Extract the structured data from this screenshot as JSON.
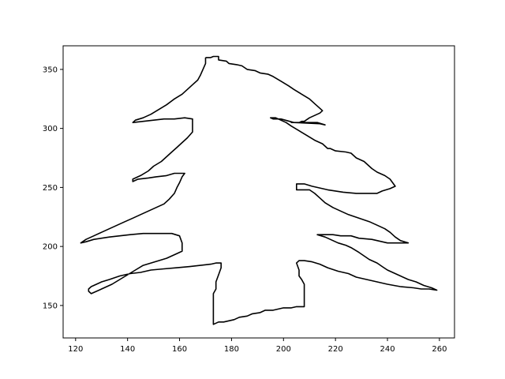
{
  "chart_data": {
    "type": "line",
    "title": "",
    "xlabel": "",
    "ylabel": "",
    "xlim": [
      115.2,
      265.8
    ],
    "ylim": [
      122.5,
      370.0
    ],
    "x_ticks": [
      120,
      140,
      160,
      180,
      200,
      220,
      240,
      260
    ],
    "y_ticks": [
      150,
      200,
      250,
      300,
      350
    ],
    "x_tick_labels": [
      "120",
      "140",
      "160",
      "180",
      "200",
      "220",
      "240",
      "260"
    ],
    "y_tick_labels": [
      "150",
      "200",
      "250",
      "300",
      "350"
    ],
    "grid": false,
    "legend": false,
    "line_color": "#000000",
    "series": [
      {
        "points": [
          [
            170,
            360
          ],
          [
            172,
            360
          ],
          [
            173,
            361
          ],
          [
            175,
            361
          ],
          [
            175,
            358
          ],
          [
            178,
            357
          ],
          [
            179,
            355
          ],
          [
            182,
            354
          ],
          [
            184,
            353
          ],
          [
            186,
            350
          ],
          [
            189,
            349
          ],
          [
            191,
            347
          ],
          [
            194,
            346
          ],
          [
            196,
            344
          ],
          [
            199,
            340
          ],
          [
            202,
            336
          ],
          [
            204,
            333
          ],
          [
            207,
            329
          ],
          [
            210,
            325
          ],
          [
            212,
            321
          ],
          [
            214,
            317
          ],
          [
            215,
            315
          ],
          [
            214,
            313
          ],
          [
            212,
            311
          ],
          [
            210,
            309
          ],
          [
            208,
            306
          ],
          [
            207,
            306
          ],
          [
            206,
            305
          ],
          [
            204,
            305
          ],
          [
            203,
            305
          ],
          [
            213,
            305
          ],
          [
            216,
            303
          ],
          [
            214,
            304
          ],
          [
            204,
            305
          ],
          [
            199,
            308
          ],
          [
            196,
            308
          ],
          [
            195,
            309
          ],
          [
            197,
            309
          ],
          [
            199,
            307
          ],
          [
            201,
            305
          ],
          [
            203,
            302
          ],
          [
            206,
            298
          ],
          [
            209,
            294
          ],
          [
            212,
            290
          ],
          [
            215,
            287
          ],
          [
            217,
            283
          ],
          [
            218,
            283
          ],
          [
            220,
            281
          ],
          [
            224,
            280
          ],
          [
            226,
            279
          ],
          [
            227,
            277
          ],
          [
            228,
            275
          ],
          [
            231,
            272
          ],
          [
            233,
            268
          ],
          [
            234,
            266
          ],
          [
            236,
            263
          ],
          [
            239,
            260
          ],
          [
            241,
            257
          ],
          [
            242,
            254
          ],
          [
            243,
            251
          ],
          [
            241,
            249
          ],
          [
            238,
            247
          ],
          [
            236,
            245
          ],
          [
            233,
            245
          ],
          [
            228,
            245
          ],
          [
            223,
            246
          ],
          [
            217,
            248
          ],
          [
            211,
            251
          ],
          [
            208,
            253
          ],
          [
            205,
            253
          ],
          [
            205,
            248
          ],
          [
            207,
            248
          ],
          [
            210,
            248
          ],
          [
            212,
            245
          ],
          [
            214,
            241
          ],
          [
            216,
            237
          ],
          [
            219,
            233
          ],
          [
            222,
            230
          ],
          [
            225,
            227
          ],
          [
            229,
            224
          ],
          [
            233,
            221
          ],
          [
            236,
            218
          ],
          [
            239,
            215
          ],
          [
            241,
            212
          ],
          [
            243,
            208
          ],
          [
            245,
            205
          ],
          [
            248,
            203
          ],
          [
            243,
            203
          ],
          [
            240,
            203
          ],
          [
            234,
            206
          ],
          [
            229,
            207
          ],
          [
            226,
            209
          ],
          [
            222,
            209
          ],
          [
            219,
            210
          ],
          [
            215,
            210
          ],
          [
            213,
            210
          ],
          [
            216,
            208
          ],
          [
            219,
            205
          ],
          [
            221,
            203
          ],
          [
            224,
            201
          ],
          [
            226,
            199
          ],
          [
            229,
            195
          ],
          [
            231,
            192
          ],
          [
            233,
            189
          ],
          [
            236,
            186
          ],
          [
            238,
            183
          ],
          [
            240,
            180
          ],
          [
            242,
            178
          ],
          [
            245,
            175
          ],
          [
            248,
            172
          ],
          [
            251,
            170
          ],
          [
            254,
            167
          ],
          [
            257,
            165
          ],
          [
            259,
            163
          ],
          [
            256,
            164
          ],
          [
            253,
            164
          ],
          [
            250,
            165
          ],
          [
            245,
            166
          ],
          [
            240,
            168
          ],
          [
            236,
            170
          ],
          [
            232,
            172
          ],
          [
            228,
            174
          ],
          [
            225,
            177
          ],
          [
            221,
            179
          ],
          [
            217,
            182
          ],
          [
            214,
            185
          ],
          [
            211,
            187
          ],
          [
            208,
            188
          ],
          [
            206,
            188
          ],
          [
            205,
            186
          ],
          [
            206,
            180
          ],
          [
            206,
            175
          ],
          [
            207,
            172
          ],
          [
            208,
            168
          ],
          [
            208,
            160
          ],
          [
            208,
            155
          ],
          [
            208,
            151
          ],
          [
            208,
            149
          ],
          [
            205,
            149
          ],
          [
            203,
            148
          ],
          [
            200,
            148
          ],
          [
            196,
            146
          ],
          [
            193,
            146
          ],
          [
            191,
            144
          ],
          [
            188,
            143
          ],
          [
            186,
            141
          ],
          [
            183,
            140
          ],
          [
            181,
            138
          ],
          [
            179,
            137
          ],
          [
            177,
            136
          ],
          [
            175,
            136
          ],
          [
            173,
            134
          ],
          [
            173,
            138
          ],
          [
            173,
            145
          ],
          [
            173,
            152
          ],
          [
            173,
            160
          ],
          [
            174,
            164
          ],
          [
            174,
            170
          ],
          [
            175,
            176
          ],
          [
            176,
            182
          ],
          [
            176,
            186
          ],
          [
            174,
            186
          ],
          [
            172,
            185
          ],
          [
            168,
            184
          ],
          [
            164,
            183
          ],
          [
            159,
            182
          ],
          [
            154,
            181
          ],
          [
            149,
            180
          ],
          [
            145,
            178
          ],
          [
            141,
            177
          ],
          [
            137,
            175
          ],
          [
            133,
            172
          ],
          [
            130,
            170
          ],
          [
            128,
            168
          ],
          [
            126,
            166
          ],
          [
            125,
            164
          ],
          [
            125,
            162
          ],
          [
            126,
            160
          ],
          [
            130,
            164
          ],
          [
            134,
            168
          ],
          [
            137,
            172
          ],
          [
            140,
            176
          ],
          [
            143,
            180
          ],
          [
            146,
            184
          ],
          [
            149,
            186
          ],
          [
            152,
            188
          ],
          [
            155,
            190
          ],
          [
            157,
            192
          ],
          [
            159,
            194
          ],
          [
            161,
            196
          ],
          [
            161,
            203
          ],
          [
            160,
            209
          ],
          [
            157,
            211
          ],
          [
            154,
            211
          ],
          [
            150,
            211
          ],
          [
            146,
            211
          ],
          [
            141,
            210
          ],
          [
            137,
            209
          ],
          [
            133,
            208
          ],
          [
            130,
            207
          ],
          [
            127,
            206
          ],
          [
            124,
            204
          ],
          [
            122,
            203
          ],
          [
            124,
            206
          ],
          [
            127,
            209
          ],
          [
            130,
            212
          ],
          [
            133,
            215
          ],
          [
            136,
            218
          ],
          [
            139,
            221
          ],
          [
            142,
            224
          ],
          [
            145,
            227
          ],
          [
            148,
            230
          ],
          [
            151,
            233
          ],
          [
            154,
            236
          ],
          [
            156,
            240
          ],
          [
            158,
            245
          ],
          [
            159,
            250
          ],
          [
            160,
            254
          ],
          [
            161,
            259
          ],
          [
            162,
            262
          ],
          [
            158,
            262
          ],
          [
            155,
            260
          ],
          [
            151,
            259
          ],
          [
            148,
            258
          ],
          [
            144,
            257
          ],
          [
            142,
            255
          ],
          [
            142,
            257
          ],
          [
            145,
            260
          ],
          [
            148,
            264
          ],
          [
            150,
            268
          ],
          [
            153,
            272
          ],
          [
            155,
            276
          ],
          [
            157,
            280
          ],
          [
            159,
            284
          ],
          [
            161,
            288
          ],
          [
            163,
            292
          ],
          [
            165,
            297
          ],
          [
            165,
            302
          ],
          [
            165,
            308
          ],
          [
            162,
            309
          ],
          [
            158,
            308
          ],
          [
            154,
            308
          ],
          [
            150,
            307
          ],
          [
            146,
            306
          ],
          [
            142,
            305
          ],
          [
            143,
            307
          ],
          [
            146,
            309
          ],
          [
            149,
            312
          ],
          [
            152,
            316
          ],
          [
            155,
            320
          ],
          [
            158,
            325
          ],
          [
            161,
            329
          ],
          [
            163,
            333
          ],
          [
            165,
            337
          ],
          [
            167,
            341
          ],
          [
            168,
            345
          ],
          [
            169,
            350
          ],
          [
            170,
            355
          ],
          [
            170,
            360
          ]
        ]
      }
    ]
  }
}
